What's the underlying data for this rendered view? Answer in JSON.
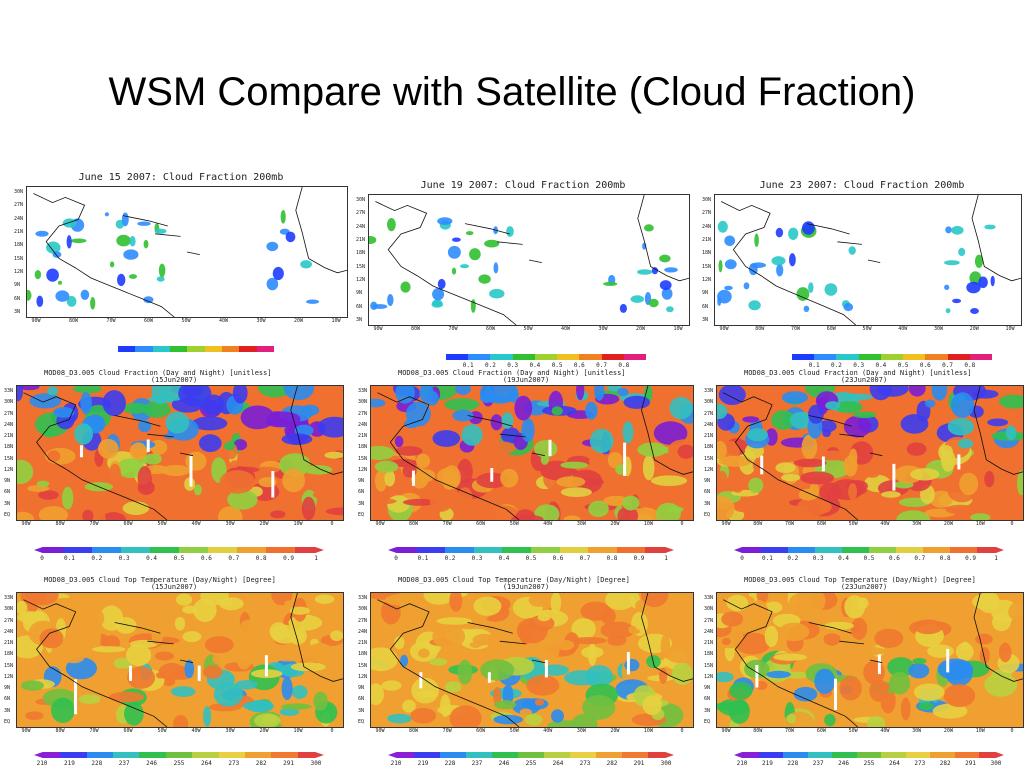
{
  "slide": {
    "title": "WSM Compare with Satellite (Cloud Fraction)"
  },
  "colors": {
    "ocean_light": "#ffffff",
    "cloud_scale": [
      "#1e3cff",
      "#2d8cff",
      "#28c8c8",
      "#30c030",
      "#a0d030",
      "#f0c020",
      "#f08020",
      "#e02020",
      "#e0207c"
    ],
    "modis_cf_scale": [
      "#7a1fd6",
      "#3c3cf0",
      "#2a8cf0",
      "#32c0c0",
      "#30c050",
      "#90d040",
      "#e0d040",
      "#f0a030",
      "#f07030",
      "#e04040"
    ],
    "modis_ctt_scale": [
      "#8a1fd6",
      "#3c3cf0",
      "#2a8cf0",
      "#32c0c0",
      "#30c050",
      "#70c040",
      "#b8d040",
      "#e8d040",
      "#f0a030",
      "#f07830",
      "#e04040"
    ]
  },
  "wsm_panels": [
    {
      "title": "June 15 2007: Cloud Fraction 200mb",
      "colorbar_labels": []
    },
    {
      "title": "June 19 2007: Cloud Fraction 200mb",
      "colorbar_labels": [
        "0.1",
        "0.2",
        "0.3",
        "0.4",
        "0.5",
        "0.6",
        "0.7",
        "0.8"
      ]
    },
    {
      "title": "June 23 2007: Cloud Fraction 200mb",
      "colorbar_labels": [
        "0.1",
        "0.2",
        "0.3",
        "0.4",
        "0.5",
        "0.6",
        "0.7",
        "0.8"
      ]
    }
  ],
  "wsm_ylabels": [
    "30N",
    "27N",
    "24N",
    "21N",
    "18N",
    "15N",
    "12N",
    "9N",
    "6N",
    "3N"
  ],
  "wsm_xlabels": [
    "90W",
    "80W",
    "70W",
    "60W",
    "50W",
    "40W",
    "30W",
    "20W",
    "10W"
  ],
  "modis_cf_panels": [
    {
      "title": "MOD08_D3.005 Cloud Fraction (Day and Night) [unitless]",
      "date": "(15Jun2007)"
    },
    {
      "title": "MOD08_D3.005 Cloud Fraction (Day and Night) [unitless]",
      "date": "(19Jun2007)"
    },
    {
      "title": "MOD08_D3.005 Cloud Fraction (Day and Night) [unitless]",
      "date": "(23Jun2007)"
    }
  ],
  "modis_ctt_panels": [
    {
      "title": "MOD08_D3.005 Cloud Top Temperature (Day/Night) [Degree]",
      "date": "(15Jun2007)"
    },
    {
      "title": "MOD08_D3.005 Cloud Top Temperature (Day/Night) [Degree]",
      "date": "(19Jun2007)"
    },
    {
      "title": "MOD08_D3.005 Cloud Top Temperature (Day/Night) [Degree]",
      "date": "(23Jun2007)"
    }
  ],
  "modis_ylabels": [
    "33N",
    "30N",
    "27N",
    "24N",
    "21N",
    "18N",
    "15N",
    "12N",
    "9N",
    "6N",
    "3N",
    "EQ"
  ],
  "modis_xlabels": [
    "90W",
    "80W",
    "70W",
    "60W",
    "50W",
    "40W",
    "30W",
    "20W",
    "10W",
    "0"
  ],
  "modis_cf_colorbar_labels": [
    "0",
    "0.1",
    "0.2",
    "0.3",
    "0.4",
    "0.5",
    "0.6",
    "0.7",
    "0.8",
    "0.9",
    "1"
  ],
  "modis_ctt_colorbar_labels": [
    "210",
    "219",
    "228",
    "237",
    "246",
    "255",
    "264",
    "273",
    "282",
    "291",
    "300"
  ]
}
